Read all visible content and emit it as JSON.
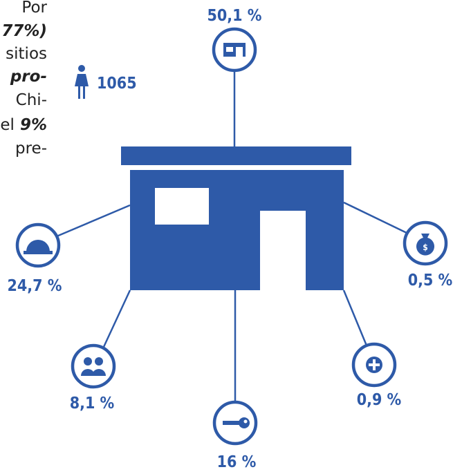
{
  "intro": {
    "lines": [
      [
        "Por"
      ],
      [
        "77%)"
      ],
      [
        "sitios"
      ],
      [
        "pro-"
      ],
      [
        "Chi-"
      ],
      [
        "el",
        "9%"
      ],
      [
        "pre-"
      ]
    ]
  },
  "person_count": "1065",
  "nodes": [
    {
      "label": "50,1 %"
    },
    {
      "label": "24,7 %"
    },
    {
      "label": "0,5 %"
    },
    {
      "label": "8,1 %"
    },
    {
      "label": "16 %"
    },
    {
      "label": "0,9 %"
    }
  ]
}
